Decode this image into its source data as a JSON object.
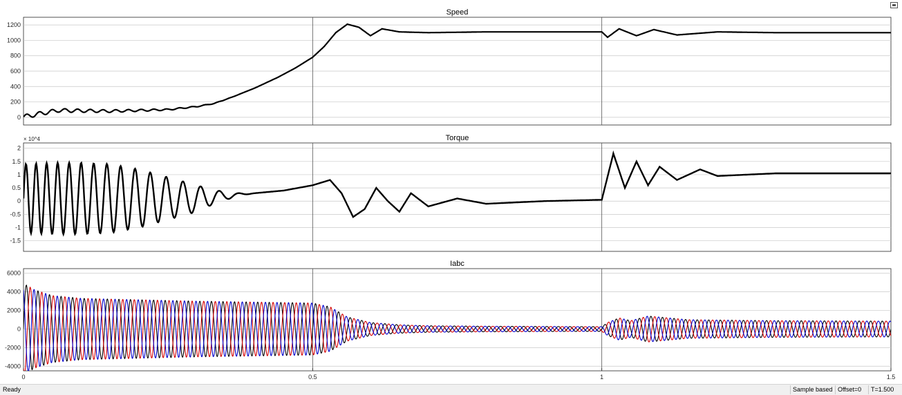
{
  "colors": {
    "background": "#ffffff",
    "grid": "#c8c8c8",
    "cursor_line": "#555555",
    "phase_a": "#000000",
    "phase_b": "#d40000",
    "phase_c": "#0000cc"
  },
  "icons": {
    "dock": "undock-icon"
  },
  "status": {
    "left": "Ready",
    "sample": "Sample based",
    "offset": "Offset=0",
    "time": "T=1.500"
  },
  "chart_data": [
    {
      "type": "line",
      "title": "Speed",
      "xlabel": "",
      "ylabel": "",
      "xlim": [
        0,
        1.5
      ],
      "ylim": [
        -100,
        1300
      ],
      "yticks": [
        0,
        200,
        400,
        600,
        800,
        1000,
        1200
      ],
      "grid": true,
      "series": [
        {
          "color": "#000000",
          "points": [
            [
              0,
              5
            ],
            [
              0.03,
              50
            ],
            [
              0.06,
              90
            ],
            [
              0.1,
              85
            ],
            [
              0.15,
              80
            ],
            [
              0.2,
              90
            ],
            [
              0.25,
              100
            ],
            [
              0.3,
              140
            ],
            [
              0.33,
              180
            ],
            [
              0.36,
              260
            ],
            [
              0.4,
              380
            ],
            [
              0.44,
              520
            ],
            [
              0.47,
              640
            ],
            [
              0.5,
              780
            ],
            [
              0.52,
              920
            ],
            [
              0.54,
              1100
            ],
            [
              0.56,
              1210
            ],
            [
              0.58,
              1170
            ],
            [
              0.6,
              1060
            ],
            [
              0.62,
              1150
            ],
            [
              0.65,
              1110
            ],
            [
              0.7,
              1100
            ],
            [
              0.8,
              1110
            ],
            [
              0.9,
              1110
            ],
            [
              1.0,
              1110
            ],
            [
              1.01,
              1040
            ],
            [
              1.03,
              1150
            ],
            [
              1.06,
              1060
            ],
            [
              1.09,
              1140
            ],
            [
              1.13,
              1070
            ],
            [
              1.2,
              1110
            ],
            [
              1.3,
              1100
            ],
            [
              1.4,
              1100
            ],
            [
              1.5,
              1100
            ]
          ]
        }
      ]
    },
    {
      "type": "line",
      "title": "Torque",
      "exponent_label": "× 10^4",
      "xlabel": "",
      "ylabel": "",
      "xlim": [
        0,
        1.5
      ],
      "ylim": [
        -1.9,
        2.2
      ],
      "yticks": [
        -1.5,
        -1,
        -0.5,
        0,
        0.5,
        1,
        1.5,
        2
      ],
      "grid": true,
      "series": [
        {
          "color": "#000000",
          "envelope": [
            [
              0,
              1.3
            ],
            [
              0.05,
              1.35
            ],
            [
              0.1,
              1.35
            ],
            [
              0.15,
              1.3
            ],
            [
              0.2,
              1.1
            ],
            [
              0.25,
              0.8
            ],
            [
              0.3,
              0.5
            ],
            [
              0.35,
              0.3
            ],
            [
              0.4,
              0.1
            ],
            [
              0.45,
              0.05
            ],
            [
              0.5,
              0.0
            ]
          ],
          "points": [
            [
              0.4,
              0.3
            ],
            [
              0.45,
              0.4
            ],
            [
              0.5,
              0.6
            ],
            [
              0.53,
              0.8
            ],
            [
              0.55,
              0.3
            ],
            [
              0.57,
              -0.6
            ],
            [
              0.59,
              -0.3
            ],
            [
              0.61,
              0.5
            ],
            [
              0.63,
              0.0
            ],
            [
              0.65,
              -0.4
            ],
            [
              0.67,
              0.3
            ],
            [
              0.7,
              -0.2
            ],
            [
              0.75,
              0.1
            ],
            [
              0.8,
              -0.1
            ],
            [
              0.9,
              0.0
            ],
            [
              1.0,
              0.05
            ],
            [
              1.02,
              1.8
            ],
            [
              1.04,
              0.5
            ],
            [
              1.06,
              1.5
            ],
            [
              1.08,
              0.6
            ],
            [
              1.1,
              1.3
            ],
            [
              1.13,
              0.8
            ],
            [
              1.17,
              1.2
            ],
            [
              1.2,
              0.95
            ],
            [
              1.3,
              1.05
            ],
            [
              1.4,
              1.05
            ],
            [
              1.5,
              1.05
            ]
          ]
        }
      ]
    },
    {
      "type": "line",
      "title": "Iabc",
      "xlabel": "",
      "ylabel": "",
      "xlim": [
        0,
        1.5
      ],
      "ylim": [
        -4500,
        6500
      ],
      "yticks": [
        -4000,
        -2000,
        0,
        2000,
        4000,
        6000
      ],
      "xticks": [
        0,
        0.5,
        1,
        1.5
      ],
      "grid": true,
      "series": [
        {
          "color": "#000000",
          "phase_deg": 0
        },
        {
          "color": "#d40000",
          "phase_deg": 120
        },
        {
          "color": "#0000cc",
          "phase_deg": 240
        }
      ],
      "amplitude_envelope": [
        [
          0,
          4900
        ],
        [
          0.02,
          4200
        ],
        [
          0.05,
          3600
        ],
        [
          0.1,
          3300
        ],
        [
          0.3,
          3000
        ],
        [
          0.5,
          2800
        ],
        [
          0.53,
          2400
        ],
        [
          0.56,
          1300
        ],
        [
          0.6,
          700
        ],
        [
          0.65,
          450
        ],
        [
          0.7,
          350
        ],
        [
          0.8,
          300
        ],
        [
          1.0,
          250
        ],
        [
          1.01,
          700
        ],
        [
          1.03,
          1200
        ],
        [
          1.05,
          900
        ],
        [
          1.08,
          1400
        ],
        [
          1.15,
          1000
        ],
        [
          1.3,
          900
        ],
        [
          1.5,
          850
        ]
      ]
    }
  ]
}
